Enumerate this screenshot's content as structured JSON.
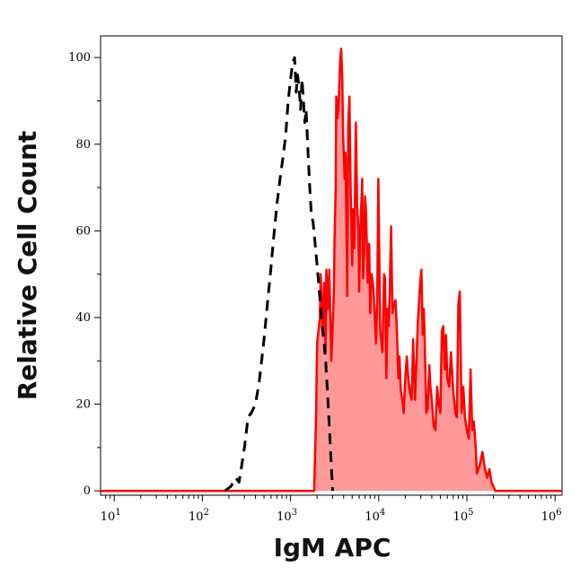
{
  "chart_data": {
    "type": "area",
    "title": "",
    "xlabel": "IgM APC",
    "ylabel": "Relative Cell Count",
    "x_scale": "log",
    "xlim": [
      7,
      1200000
    ],
    "ylim": [
      -1,
      105
    ],
    "x_ticks": [
      {
        "value": 10,
        "base": "10",
        "exp": "1"
      },
      {
        "value": 100,
        "base": "10",
        "exp": "2"
      },
      {
        "value": 1000,
        "base": "10",
        "exp": "3"
      },
      {
        "value": 10000,
        "base": "10",
        "exp": "4"
      },
      {
        "value": 100000,
        "base": "10",
        "exp": "5"
      },
      {
        "value": 1000000,
        "base": "10",
        "exp": "6"
      }
    ],
    "y_ticks": [
      0,
      20,
      40,
      60,
      80,
      100
    ],
    "grid": false,
    "series": [
      {
        "style": "dashed",
        "color": "#000000",
        "fill": "none",
        "points": [
          [
            180,
            0
          ],
          [
            210,
            1
          ],
          [
            240,
            3
          ],
          [
            260,
            2
          ],
          [
            280,
            6
          ],
          [
            300,
            10
          ],
          [
            330,
            17
          ],
          [
            360,
            18
          ],
          [
            400,
            20
          ],
          [
            440,
            25
          ],
          [
            470,
            30
          ],
          [
            500,
            35
          ],
          [
            540,
            42
          ],
          [
            590,
            50
          ],
          [
            640,
            58
          ],
          [
            700,
            66
          ],
          [
            760,
            72
          ],
          [
            820,
            77
          ],
          [
            880,
            82
          ],
          [
            940,
            90
          ],
          [
            1000,
            95
          ],
          [
            1060,
            99
          ],
          [
            1110,
            100
          ],
          [
            1160,
            92
          ],
          [
            1200,
            96
          ],
          [
            1250,
            93
          ],
          [
            1300,
            88
          ],
          [
            1350,
            95
          ],
          [
            1400,
            90
          ],
          [
            1450,
            85
          ],
          [
            1500,
            88
          ],
          [
            1580,
            78
          ],
          [
            1650,
            70
          ],
          [
            1720,
            64
          ],
          [
            1800,
            62
          ],
          [
            1900,
            57
          ],
          [
            2000,
            52
          ],
          [
            2100,
            47
          ],
          [
            2200,
            42
          ],
          [
            2300,
            38
          ],
          [
            2400,
            34
          ],
          [
            2500,
            30
          ],
          [
            2600,
            24
          ],
          [
            2700,
            18
          ],
          [
            2800,
            12
          ],
          [
            2900,
            6
          ],
          [
            3000,
            0
          ]
        ]
      },
      {
        "style": "solid",
        "color": "#ff0000",
        "fill": "#ff9999",
        "points": [
          [
            7,
            0
          ],
          [
            100,
            0
          ],
          [
            1000,
            0
          ],
          [
            1850,
            0
          ],
          [
            1950,
            18
          ],
          [
            2000,
            34
          ],
          [
            2100,
            38
          ],
          [
            2150,
            40
          ],
          [
            2200,
            50
          ],
          [
            2300,
            37
          ],
          [
            2400,
            48
          ],
          [
            2500,
            32
          ],
          [
            2550,
            51
          ],
          [
            2650,
            42
          ],
          [
            2750,
            51
          ],
          [
            2900,
            30
          ],
          [
            3000,
            38
          ],
          [
            3100,
            46
          ],
          [
            3150,
            58
          ],
          [
            3250,
            70
          ],
          [
            3300,
            91
          ],
          [
            3400,
            86
          ],
          [
            3500,
            88
          ],
          [
            3650,
            99
          ],
          [
            3750,
            102
          ],
          [
            3850,
            96
          ],
          [
            3950,
            82
          ],
          [
            4100,
            72
          ],
          [
            4200,
            78
          ],
          [
            4400,
            45
          ],
          [
            4500,
            84
          ],
          [
            4650,
            91
          ],
          [
            4800,
            70
          ],
          [
            5000,
            52
          ],
          [
            5100,
            65
          ],
          [
            5300,
            56
          ],
          [
            5500,
            85
          ],
          [
            5700,
            66
          ],
          [
            5900,
            60
          ],
          [
            6000,
            46
          ],
          [
            6200,
            61
          ],
          [
            6400,
            68
          ],
          [
            6500,
            72
          ],
          [
            6650,
            49
          ],
          [
            6800,
            54
          ],
          [
            7000,
            68
          ],
          [
            7200,
            64
          ],
          [
            7500,
            48
          ],
          [
            7800,
            57
          ],
          [
            8000,
            41
          ],
          [
            8300,
            50
          ],
          [
            8700,
            47
          ],
          [
            9000,
            41
          ],
          [
            9300,
            34
          ],
          [
            9600,
            43
          ],
          [
            9900,
            72
          ],
          [
            10400,
            37
          ],
          [
            11000,
            32
          ],
          [
            11500,
            50
          ],
          [
            11800,
            49
          ],
          [
            12200,
            26
          ],
          [
            12600,
            42
          ],
          [
            13000,
            38
          ],
          [
            13400,
            48
          ],
          [
            13800,
            61
          ],
          [
            14300,
            41
          ],
          [
            14800,
            43
          ],
          [
            15500,
            44
          ],
          [
            16000,
            38
          ],
          [
            16700,
            26
          ],
          [
            17200,
            31
          ],
          [
            17800,
            23
          ],
          [
            18500,
            21
          ],
          [
            19200,
            18
          ],
          [
            20000,
            26
          ],
          [
            20800,
            31
          ],
          [
            21600,
            26
          ],
          [
            22500,
            23
          ],
          [
            23600,
            21
          ],
          [
            24600,
            35
          ],
          [
            25800,
            21
          ],
          [
            26800,
            30
          ],
          [
            27800,
            39
          ],
          [
            29500,
            48
          ],
          [
            30500,
            51
          ],
          [
            31500,
            36
          ],
          [
            32500,
            42
          ],
          [
            33500,
            31
          ],
          [
            34600,
            18
          ],
          [
            36000,
            19
          ],
          [
            37500,
            29
          ],
          [
            38600,
            24
          ],
          [
            40000,
            21
          ],
          [
            42000,
            15
          ],
          [
            44000,
            14
          ],
          [
            46000,
            24
          ],
          [
            48000,
            20
          ],
          [
            50000,
            18
          ],
          [
            52000,
            37
          ],
          [
            54000,
            38
          ],
          [
            56000,
            28
          ],
          [
            58000,
            36
          ],
          [
            60000,
            26
          ],
          [
            63000,
            24
          ],
          [
            66000,
            32
          ],
          [
            70000,
            23
          ],
          [
            74000,
            18
          ],
          [
            77000,
            17
          ],
          [
            80000,
            43
          ],
          [
            83000,
            46
          ],
          [
            87000,
            18
          ],
          [
            91000,
            24
          ],
          [
            95000,
            17
          ],
          [
            100000,
            14
          ],
          [
            105000,
            12
          ],
          [
            110000,
            28
          ],
          [
            115000,
            14
          ],
          [
            120000,
            16
          ],
          [
            125000,
            11
          ],
          [
            130000,
            4
          ],
          [
            140000,
            6
          ],
          [
            150000,
            9
          ],
          [
            160000,
            5
          ],
          [
            170000,
            3
          ],
          [
            180000,
            5
          ],
          [
            190000,
            2
          ],
          [
            200000,
            1
          ],
          [
            210000,
            0
          ],
          [
            250000,
            0
          ],
          [
            1200000,
            0
          ]
        ]
      }
    ]
  }
}
